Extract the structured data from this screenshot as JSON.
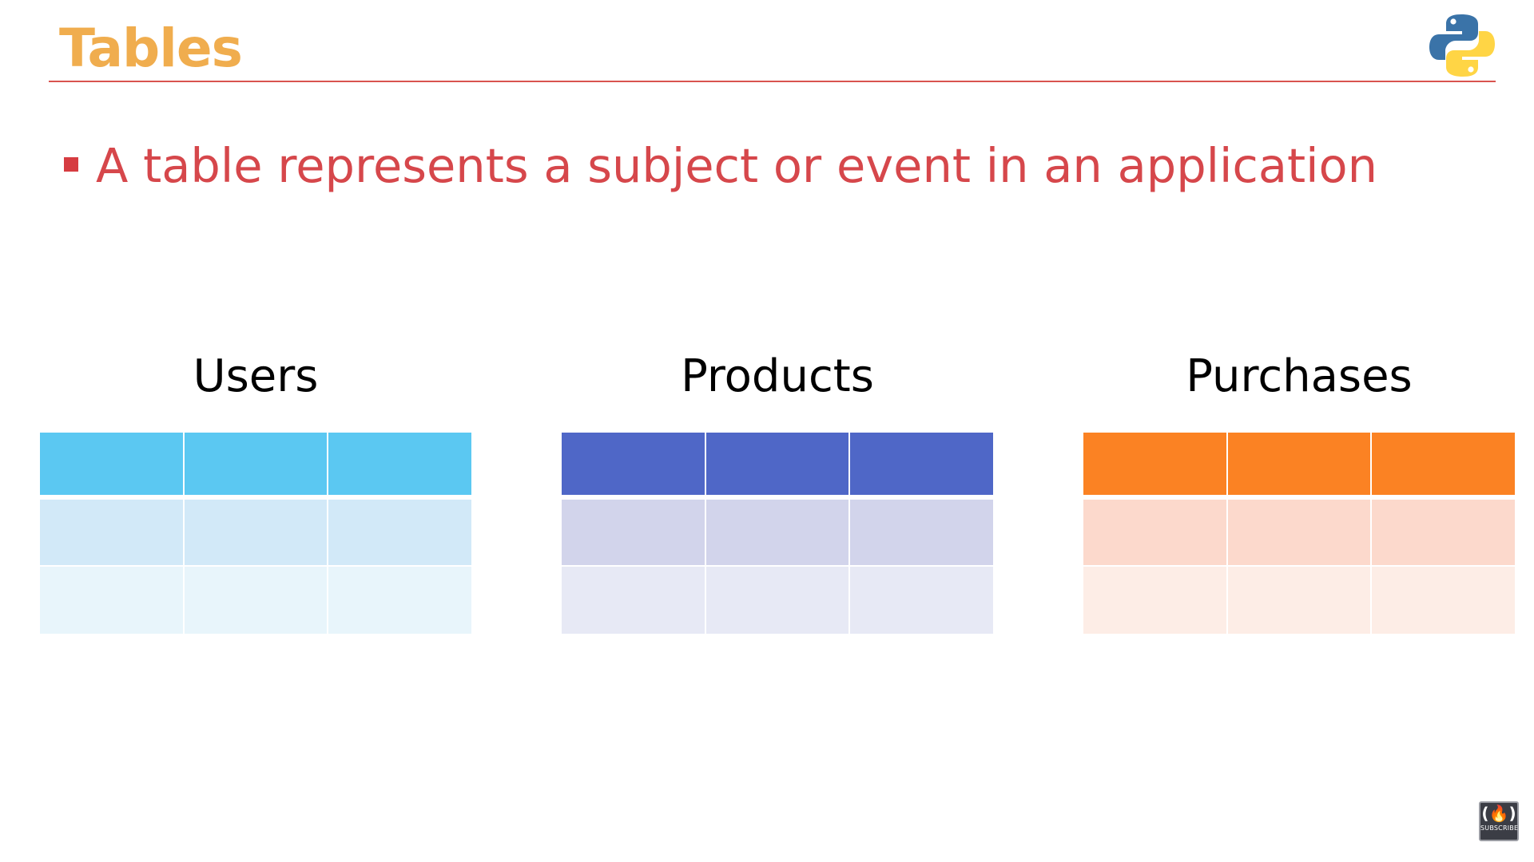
{
  "slide": {
    "title": "Tables",
    "bullet": "A table represents a subject or event in an application",
    "logo_icon": "python-logo-icon",
    "subscribe_badge": {
      "icon": "freecodecamp-icon",
      "label": "SUBSCRIBE"
    }
  },
  "colors": {
    "title": "#F0AD4E",
    "rule": "#D9534F",
    "bullet_text": "#D6474B",
    "bullet_marker": "#D63C41"
  },
  "tables": [
    {
      "label": "Users",
      "columns": 3,
      "rows": 3,
      "row_colors": [
        "#5BC8F2",
        "#D2E9F8",
        "#E8F5FB"
      ]
    },
    {
      "label": "Products",
      "columns": 3,
      "rows": 3,
      "row_colors": [
        "#4F67C7",
        "#D2D4EB",
        "#E7E9F5"
      ]
    },
    {
      "label": "Purchases",
      "columns": 3,
      "rows": 3,
      "row_colors": [
        "#FB8223",
        "#FCD9CC",
        "#FDEDE6"
      ]
    }
  ]
}
